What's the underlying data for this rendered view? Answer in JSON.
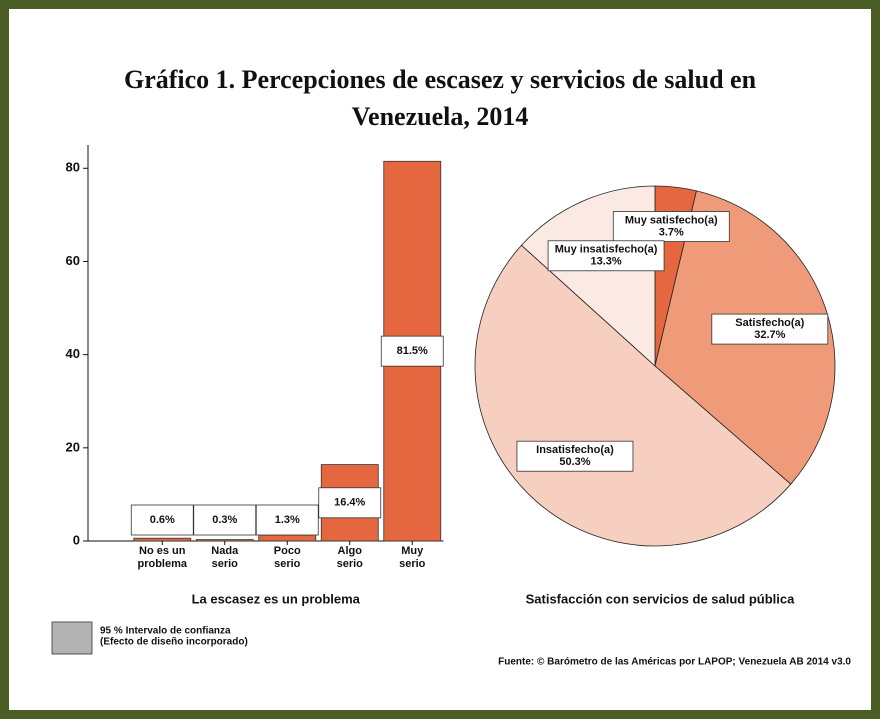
{
  "title": "Gráfico 1. Percepciones de escasez y servicios de salud en Venezuela, 2014",
  "legend": {
    "lines": [
      "95 % Intervalo de confianza",
      "(Efecto de diseño incorporado)"
    ],
    "color": "#b3b3b3"
  },
  "source": "Fuente: © Barómetro de las Américas por LAPOP; Venezuela AB 2014 v3.0",
  "chart_data": [
    {
      "type": "bar",
      "x_label": "La escasez es un problema",
      "categories": [
        [
          "No es un",
          "problema"
        ],
        [
          "Nada",
          "serio"
        ],
        [
          "Poco",
          "serio"
        ],
        [
          "Algo",
          "serio"
        ],
        [
          "Muy",
          "serio"
        ]
      ],
      "values": [
        0.6,
        0.3,
        1.3,
        16.4,
        81.5
      ],
      "value_labels": [
        "0.6%",
        "0.3%",
        "1.3%",
        "16.4%",
        "81.5%"
      ],
      "color": "#e5673f",
      "ylim": [
        0,
        85
      ],
      "yticks": [
        0,
        20,
        40,
        60,
        80
      ]
    },
    {
      "type": "pie",
      "x_label": "Satisfacción con servicios de salud pública",
      "categories": [
        "Muy satisfecho(a)",
        "Satisfecho(a)",
        "Insatisfecho(a)",
        "Muy insatisfecho(a)"
      ],
      "values": [
        3.7,
        32.7,
        50.3,
        13.3
      ],
      "value_labels": [
        "3.7%",
        "32.7%",
        "50.3%",
        "13.3%"
      ],
      "colors": [
        "#e5673f",
        "#ef9a78",
        "#f7cfc0",
        "#fbe9e3"
      ]
    }
  ]
}
